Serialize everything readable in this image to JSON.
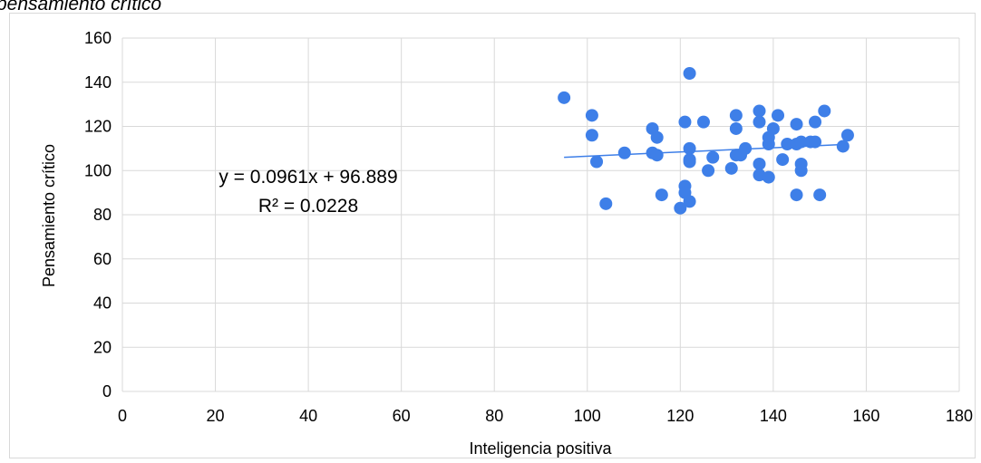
{
  "clipped_title": "pensamiento crítico",
  "chart_data": {
    "type": "scatter",
    "title": "",
    "xlabel": "Inteligencia positiva",
    "ylabel": "Pensamiento crítico",
    "xlim": [
      0,
      180
    ],
    "ylim": [
      0,
      160
    ],
    "x_ticks": [
      0,
      20,
      40,
      60,
      80,
      100,
      120,
      140,
      160,
      180
    ],
    "y_ticks": [
      0,
      20,
      40,
      60,
      80,
      100,
      120,
      140,
      160
    ],
    "grid": true,
    "legend": "none",
    "series": [
      {
        "color": "#3e7fe8",
        "points": [
          [
            95,
            133
          ],
          [
            101,
            125
          ],
          [
            101,
            116
          ],
          [
            102,
            104
          ],
          [
            104,
            85
          ],
          [
            108,
            108
          ],
          [
            114,
            119
          ],
          [
            114,
            108
          ],
          [
            115,
            115
          ],
          [
            115,
            107
          ],
          [
            116,
            89
          ],
          [
            120,
            83
          ],
          [
            121,
            93
          ],
          [
            121,
            90
          ],
          [
            121,
            122
          ],
          [
            122,
            144
          ],
          [
            122,
            110
          ],
          [
            122,
            105
          ],
          [
            122,
            104
          ],
          [
            122,
            86
          ],
          [
            125,
            122
          ],
          [
            126,
            100
          ],
          [
            127,
            106
          ],
          [
            131,
            101
          ],
          [
            132,
            125
          ],
          [
            132,
            119
          ],
          [
            132,
            107
          ],
          [
            133,
            107
          ],
          [
            134,
            110
          ],
          [
            137,
            127
          ],
          [
            137,
            122
          ],
          [
            137,
            103
          ],
          [
            137,
            98
          ],
          [
            139,
            115
          ],
          [
            139,
            112
          ],
          [
            139,
            97
          ],
          [
            140,
            119
          ],
          [
            141,
            125
          ],
          [
            142,
            105
          ],
          [
            143,
            112
          ],
          [
            145,
            121
          ],
          [
            145,
            112
          ],
          [
            145,
            89
          ],
          [
            146,
            113
          ],
          [
            146,
            103
          ],
          [
            146,
            100
          ],
          [
            148,
            113
          ],
          [
            149,
            122
          ],
          [
            149,
            113
          ],
          [
            150,
            89
          ],
          [
            151,
            127
          ],
          [
            155,
            111
          ],
          [
            156,
            116
          ]
        ]
      }
    ],
    "trendline": {
      "slope": 0.0961,
      "intercept": 96.889,
      "x_range": [
        95,
        156
      ],
      "color": "#3e7fe8",
      "equation_label": "y = 0.0961x + 96.889",
      "r2_label": "R² = 0.0228"
    }
  }
}
